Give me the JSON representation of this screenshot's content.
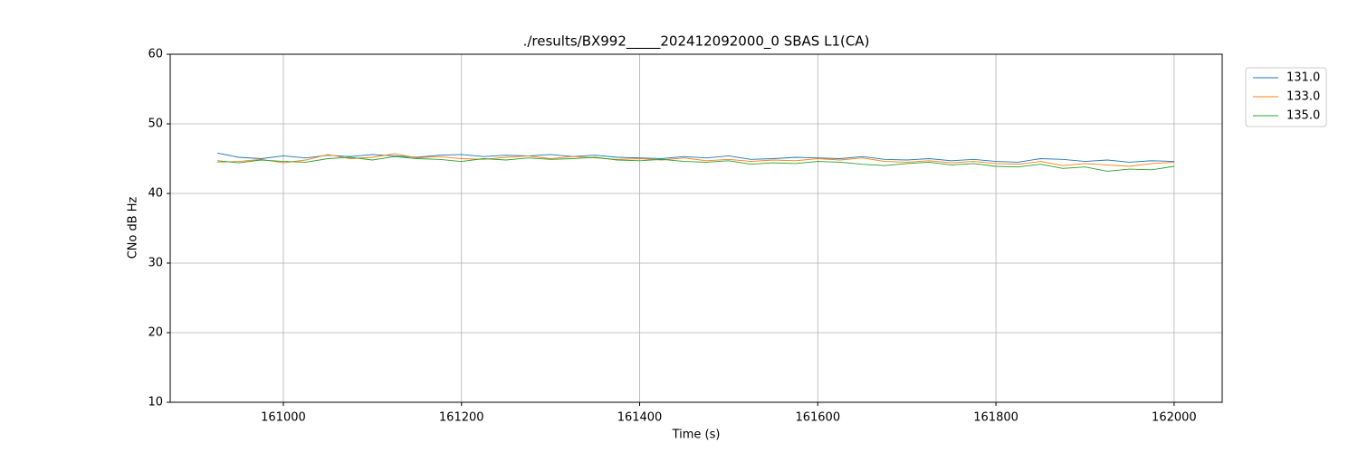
{
  "chart_data": {
    "type": "line",
    "title": "./results/BX992_____202412092000_0 SBAS L1(CA)",
    "x_label": "Time (s)",
    "y_label": "CNo dB Hz",
    "x": [
      160926,
      160950,
      160975,
      161000,
      161025,
      161050,
      161075,
      161100,
      161125,
      161150,
      161175,
      161200,
      161225,
      161250,
      161275,
      161300,
      161325,
      161350,
      161375,
      161400,
      161425,
      161450,
      161475,
      161500,
      161525,
      161550,
      161575,
      161600,
      161625,
      161650,
      161675,
      161700,
      161725,
      161750,
      161775,
      161800,
      161825,
      161850,
      161875,
      161900,
      161925,
      161950,
      161975,
      162000
    ],
    "series": [
      {
        "name": "131.0",
        "color": "#1f77b4",
        "values": [
          45.8,
          45.2,
          45.0,
          45.4,
          45.1,
          45.5,
          45.3,
          45.6,
          45.4,
          45.2,
          45.5,
          45.6,
          45.3,
          45.5,
          45.4,
          45.6,
          45.3,
          45.5,
          45.2,
          45.1,
          45.0,
          45.3,
          45.1,
          45.4,
          44.9,
          45.0,
          45.2,
          45.1,
          45.0,
          45.3,
          44.9,
          44.8,
          45.0,
          44.7,
          44.9,
          44.6,
          44.5,
          45.0,
          44.9,
          44.6,
          44.8,
          44.5,
          44.7,
          44.6
        ]
      },
      {
        "name": "133.0",
        "color": "#ff7f0e",
        "values": [
          44.5,
          44.6,
          44.9,
          44.4,
          44.8,
          45.6,
          45.0,
          45.2,
          45.7,
          45.1,
          45.3,
          45.0,
          44.9,
          45.2,
          45.4,
          45.0,
          45.3,
          45.1,
          44.9,
          45.0,
          44.8,
          45.1,
          44.7,
          44.9,
          44.6,
          44.8,
          44.7,
          45.0,
          44.8,
          45.1,
          44.6,
          44.5,
          44.7,
          44.4,
          44.6,
          44.3,
          44.2,
          44.6,
          44.0,
          44.3,
          44.1,
          43.9,
          44.3,
          44.5
        ]
      },
      {
        "name": "135.0",
        "color": "#2ca02c",
        "values": [
          44.7,
          44.4,
          44.8,
          44.6,
          44.5,
          45.0,
          45.2,
          44.8,
          45.3,
          45.0,
          44.9,
          44.6,
          45.0,
          44.8,
          45.1,
          44.9,
          45.0,
          45.2,
          44.8,
          44.7,
          44.9,
          44.6,
          44.5,
          44.7,
          44.2,
          44.4,
          44.3,
          44.6,
          44.5,
          44.2,
          44.0,
          44.3,
          44.5,
          44.1,
          44.3,
          43.9,
          43.8,
          44.2,
          43.6,
          43.8,
          43.2,
          43.5,
          43.4,
          43.9
        ]
      }
    ],
    "xlim": [
      160873,
      162054
    ],
    "xticks": [
      161000,
      161200,
      161400,
      161600,
      161800,
      162000
    ],
    "ylim": [
      10,
      60
    ],
    "yticks": [
      10,
      20,
      30,
      40,
      50,
      60
    ],
    "grid": true,
    "legend": "outside right"
  }
}
